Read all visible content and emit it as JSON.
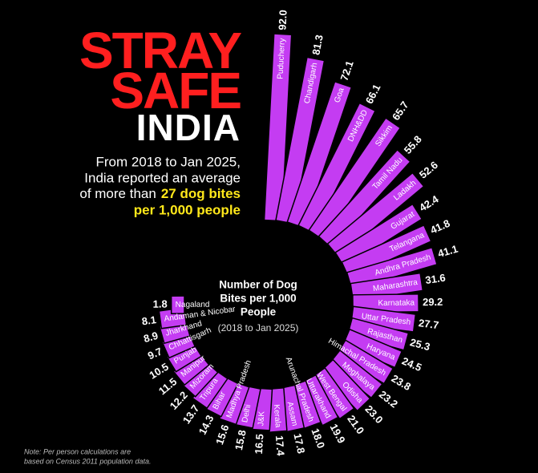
{
  "chart_data": {
    "type": "radial-bar",
    "title": [
      "STRAY",
      "SAFE",
      "INDIA"
    ],
    "subtitle": [
      "From 2018 to Jan 2025,",
      "India reported an average",
      "of more than"
    ],
    "highlight": [
      "27 dog bites",
      "per 1,000 people"
    ],
    "center_label": [
      "Number of Dog",
      "Bites per 1,000",
      "People"
    ],
    "center_sublabel": "(2018 to Jan 2025)",
    "note": [
      "Note: Per person calculations are",
      "based on Census 2011 population data."
    ],
    "color": "#c43cf2",
    "categories": [
      "Puducherry",
      "Chandigarh",
      "Goa",
      "DNH&DD",
      "Sikkim",
      "Tamil Nadu",
      "Ladakh",
      "Gujarat",
      "Telangana",
      "Andhra Pradesh",
      "Maharashtra",
      "Karnataka",
      "Uttar Pradesh",
      "Rajasthan",
      "Haryana",
      "Himachal Pradesh",
      "Meghalaya",
      "Odisha",
      "West Bengal",
      "Uttarakhand",
      "Arunachal Pradesh",
      "Assam",
      "Kerala",
      "J&K",
      "Delhi",
      "Madhya Pradesh",
      "Bihar",
      "Tripura",
      "Mizoram",
      "Manipur",
      "Punjab",
      "Chhattisgarh",
      "Jharkhand",
      "Andaman & Nicobar",
      "Nagaland"
    ],
    "values": [
      92.0,
      81.3,
      72.1,
      66.1,
      65.7,
      55.8,
      52.6,
      42.4,
      41.8,
      41.1,
      31.6,
      29.2,
      27.7,
      25.3,
      24.5,
      23.8,
      23.2,
      23.0,
      21.0,
      19.9,
      18.0,
      17.8,
      17.4,
      16.5,
      15.8,
      15.6,
      14.3,
      13.7,
      12.2,
      11.5,
      10.5,
      9.7,
      8.9,
      8.1,
      1.8
    ],
    "value_labels": [
      "92.0",
      "81.3",
      "72.1",
      "66.1",
      "65.7",
      "55.8",
      "52.6",
      "42.4",
      "41.8",
      "41.1",
      "31.6",
      "29.2",
      "27.7",
      "25.3",
      "24.5",
      "23.8",
      "23.2",
      "23.0",
      "21.0",
      "19.9",
      "18.0",
      "17.8",
      "17.4",
      "16.5",
      "15.8",
      "15.6",
      "14.3",
      "13.7",
      "12.2",
      "11.5",
      "10.5",
      "9.7",
      "8.9",
      "8.1",
      "1.8"
    ]
  }
}
